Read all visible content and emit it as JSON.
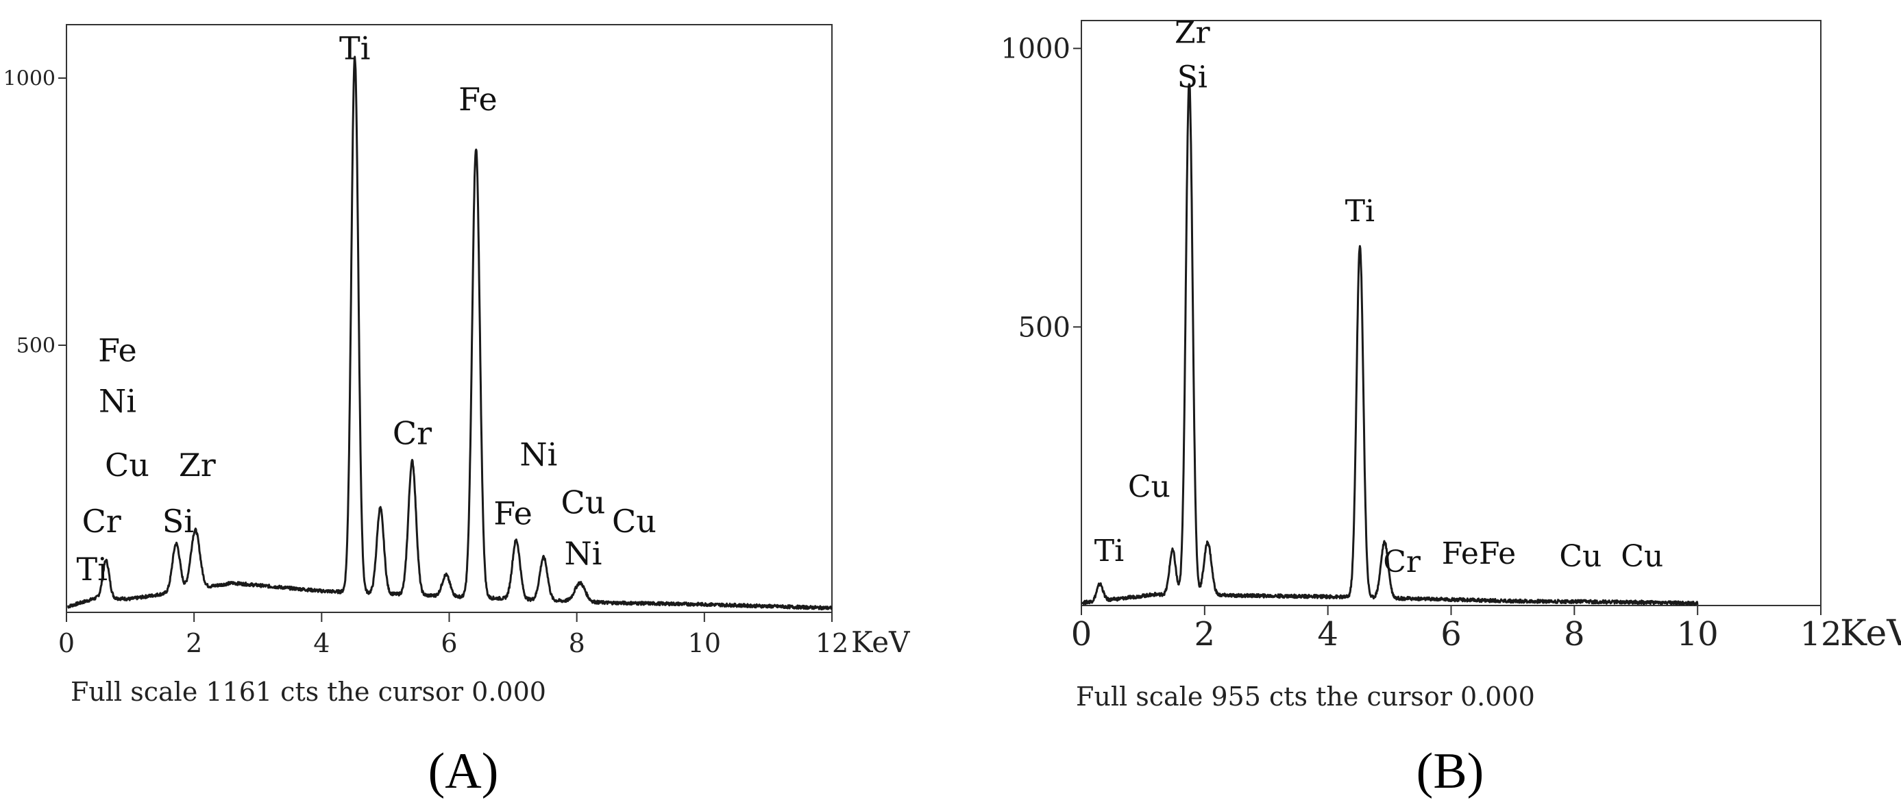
{
  "chart_data": [
    {
      "type": "line",
      "panel_label": "(A)",
      "footer": "Full scale 1161 cts the cursor 0.000",
      "x_unit": "KeV",
      "xlim": [
        0,
        12
      ],
      "ylim": [
        0,
        1100
      ],
      "x_ticks": [
        0,
        2,
        4,
        6,
        8,
        10,
        12
      ],
      "y_ticks": [
        500,
        1000
      ],
      "grid": false,
      "peaks": [
        {
          "x": 0.62,
          "y": 70,
          "w": 0.05
        },
        {
          "x": 1.72,
          "y": 90,
          "w": 0.06
        },
        {
          "x": 2.02,
          "y": 110,
          "w": 0.07
        },
        {
          "x": 4.52,
          "y": 1000,
          "w": 0.055
        },
        {
          "x": 4.92,
          "y": 160,
          "w": 0.055
        },
        {
          "x": 5.42,
          "y": 250,
          "w": 0.06
        },
        {
          "x": 5.95,
          "y": 40,
          "w": 0.06
        },
        {
          "x": 6.42,
          "y": 840,
          "w": 0.06
        },
        {
          "x": 7.05,
          "y": 110,
          "w": 0.06
        },
        {
          "x": 7.48,
          "y": 80,
          "w": 0.06
        },
        {
          "x": 8.05,
          "y": 35,
          "w": 0.08
        }
      ],
      "background": [
        [
          0,
          10
        ],
        [
          0.5,
          28
        ],
        [
          1.0,
          25
        ],
        [
          2.6,
          55
        ],
        [
          4.0,
          40
        ],
        [
          6.0,
          30
        ],
        [
          8.5,
          18
        ],
        [
          10,
          15
        ],
        [
          12,
          8
        ]
      ],
      "annotations": [
        {
          "text": "Ti",
          "x": 4.52,
          "y": 1035
        },
        {
          "text": "Fe",
          "x": 6.45,
          "y": 940
        },
        {
          "text": "Cr",
          "x": 5.42,
          "y": 315
        },
        {
          "text": "Ni",
          "x": 7.4,
          "y": 275
        },
        {
          "text": "Fe",
          "x": 7.0,
          "y": 165
        },
        {
          "text": "Cu",
          "x": 8.1,
          "y": 185
        },
        {
          "text": "Cu",
          "x": 8.9,
          "y": 150
        },
        {
          "text": "Ni",
          "x": 8.1,
          "y": 90
        },
        {
          "text": "Fe",
          "x": 0.8,
          "y": 470
        },
        {
          "text": "Ni",
          "x": 0.8,
          "y": 375
        },
        {
          "text": "Cu",
          "x": 0.95,
          "y": 255
        },
        {
          "text": "Zr",
          "x": 2.05,
          "y": 255
        },
        {
          "text": "Cr",
          "x": 0.55,
          "y": 150
        },
        {
          "text": "Si",
          "x": 1.75,
          "y": 150
        },
        {
          "text": "Ti",
          "x": 0.4,
          "y": 60
        }
      ]
    },
    {
      "type": "line",
      "panel_label": "(B)",
      "footer": "Full scale 955 cts the cursor 0.000",
      "x_unit": "KeV",
      "xlim": [
        0,
        12
      ],
      "ylim": [
        0,
        1050
      ],
      "x_ticks": [
        0,
        2,
        4,
        6,
        8,
        10,
        12
      ],
      "y_ticks": [
        500,
        1000
      ],
      "grid": false,
      "peaks": [
        {
          "x": 0.3,
          "y": 30,
          "w": 0.05
        },
        {
          "x": 1.48,
          "y": 80,
          "w": 0.05
        },
        {
          "x": 1.75,
          "y": 920,
          "w": 0.055
        },
        {
          "x": 2.05,
          "y": 95,
          "w": 0.06
        },
        {
          "x": 4.52,
          "y": 630,
          "w": 0.055
        },
        {
          "x": 4.92,
          "y": 100,
          "w": 0.06
        }
      ],
      "background": [
        [
          0,
          5
        ],
        [
          0.6,
          12
        ],
        [
          1.2,
          20
        ],
        [
          2.5,
          18
        ],
        [
          4.0,
          16
        ],
        [
          5.5,
          12
        ],
        [
          7.0,
          8
        ],
        [
          9.0,
          6
        ],
        [
          10,
          4
        ]
      ],
      "annotations": [
        {
          "text": "Zr",
          "x": 1.8,
          "y": 1010
        },
        {
          "text": "Si",
          "x": 1.8,
          "y": 930
        },
        {
          "text": "Ti",
          "x": 4.52,
          "y": 690
        },
        {
          "text": "Cu",
          "x": 1.1,
          "y": 195
        },
        {
          "text": "Ti",
          "x": 0.45,
          "y": 80
        },
        {
          "text": "Cr",
          "x": 5.2,
          "y": 60
        },
        {
          "text": "FeFe",
          "x": 6.45,
          "y": 75
        },
        {
          "text": "Cu",
          "x": 8.1,
          "y": 70
        },
        {
          "text": "Cu",
          "x": 9.1,
          "y": 70
        }
      ]
    }
  ]
}
